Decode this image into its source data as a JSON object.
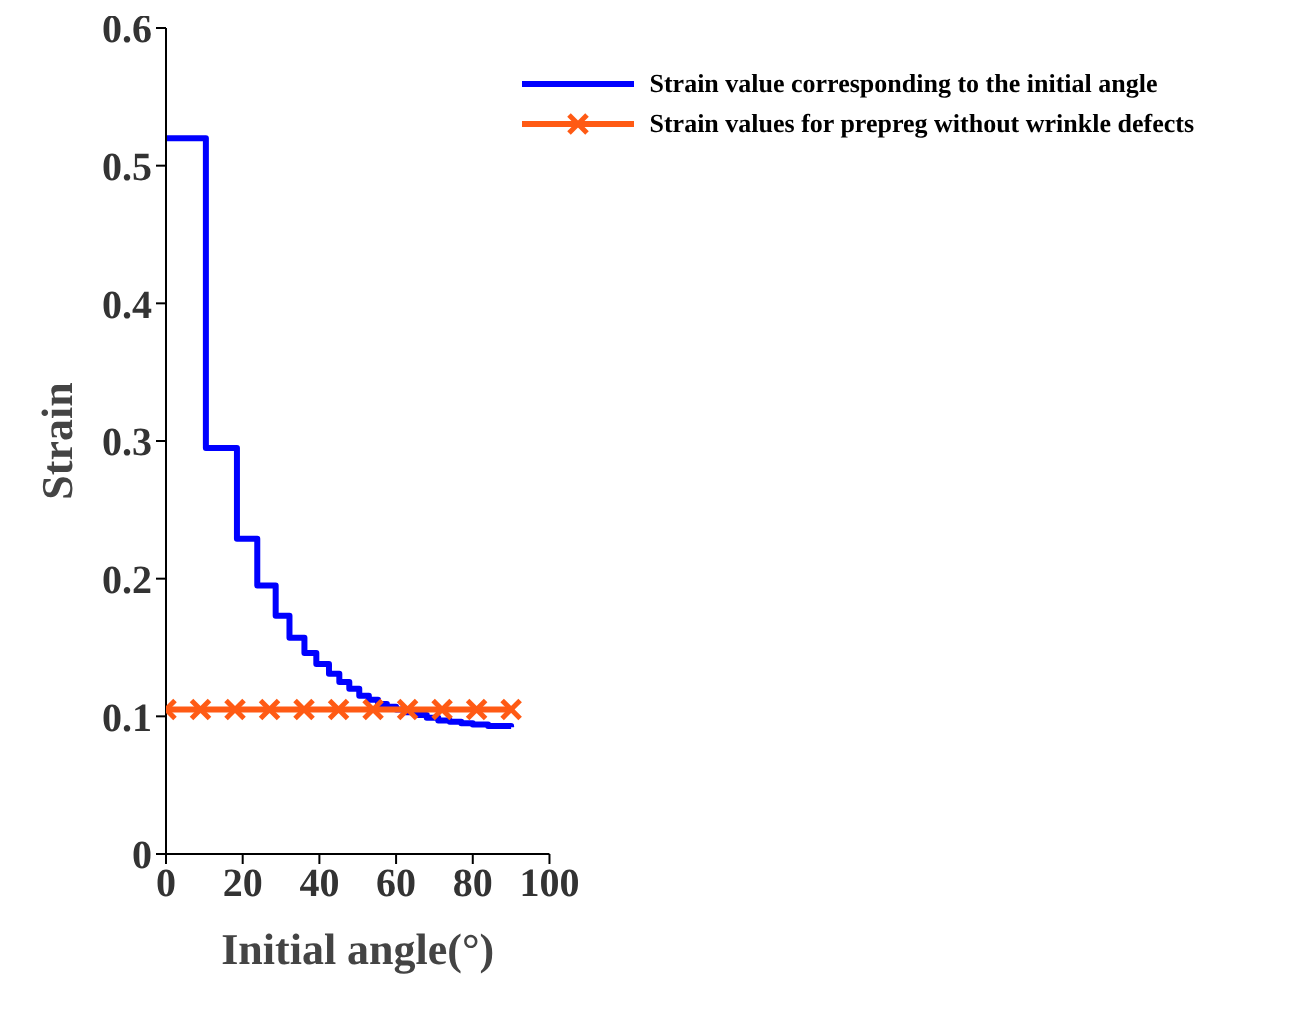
{
  "chart_data": {
    "type": "line",
    "xlabel": "Initial angle(°)",
    "ylabel": "Strain",
    "xlim": [
      0,
      100
    ],
    "xticks": [
      0,
      20,
      40,
      60,
      80,
      100
    ],
    "ylim": [
      0,
      0.6
    ],
    "yticks": [
      0,
      0.1,
      0.2,
      0.3,
      0.4,
      0.5,
      0.6
    ],
    "grid": false,
    "legend": "top right",
    "series": [
      {
        "name": "Strain value corresponding to the initial angle",
        "type": "step",
        "color": "#0000ff",
        "marker": "none",
        "x": [
          0,
          10.4,
          18.5,
          23.8,
          28.6,
          32.2,
          36.1,
          39.2,
          42.5,
          45.2,
          47.8,
          50.4,
          52.9,
          55.3,
          57.6,
          60,
          62.5,
          65,
          68,
          71,
          74,
          77,
          80,
          84,
          90
        ],
        "values": [
          0.52,
          0.295,
          0.229,
          0.195,
          0.173,
          0.157,
          0.146,
          0.138,
          0.131,
          0.125,
          0.12,
          0.115,
          0.112,
          0.109,
          0.107,
          0.105,
          0.103,
          0.101,
          0.099,
          0.097,
          0.096,
          0.095,
          0.094,
          0.093,
          0.092
        ]
      },
      {
        "name": "Strain values for prepreg without wrinkle defects",
        "type": "line",
        "color": "#ff5a14",
        "marker": "cross",
        "x": [
          0,
          9,
          18,
          27,
          36,
          45,
          54,
          63,
          72,
          81,
          90
        ],
        "values": [
          0.105,
          0.105,
          0.105,
          0.105,
          0.105,
          0.105,
          0.105,
          0.105,
          0.105,
          0.105,
          0.105
        ]
      }
    ]
  }
}
